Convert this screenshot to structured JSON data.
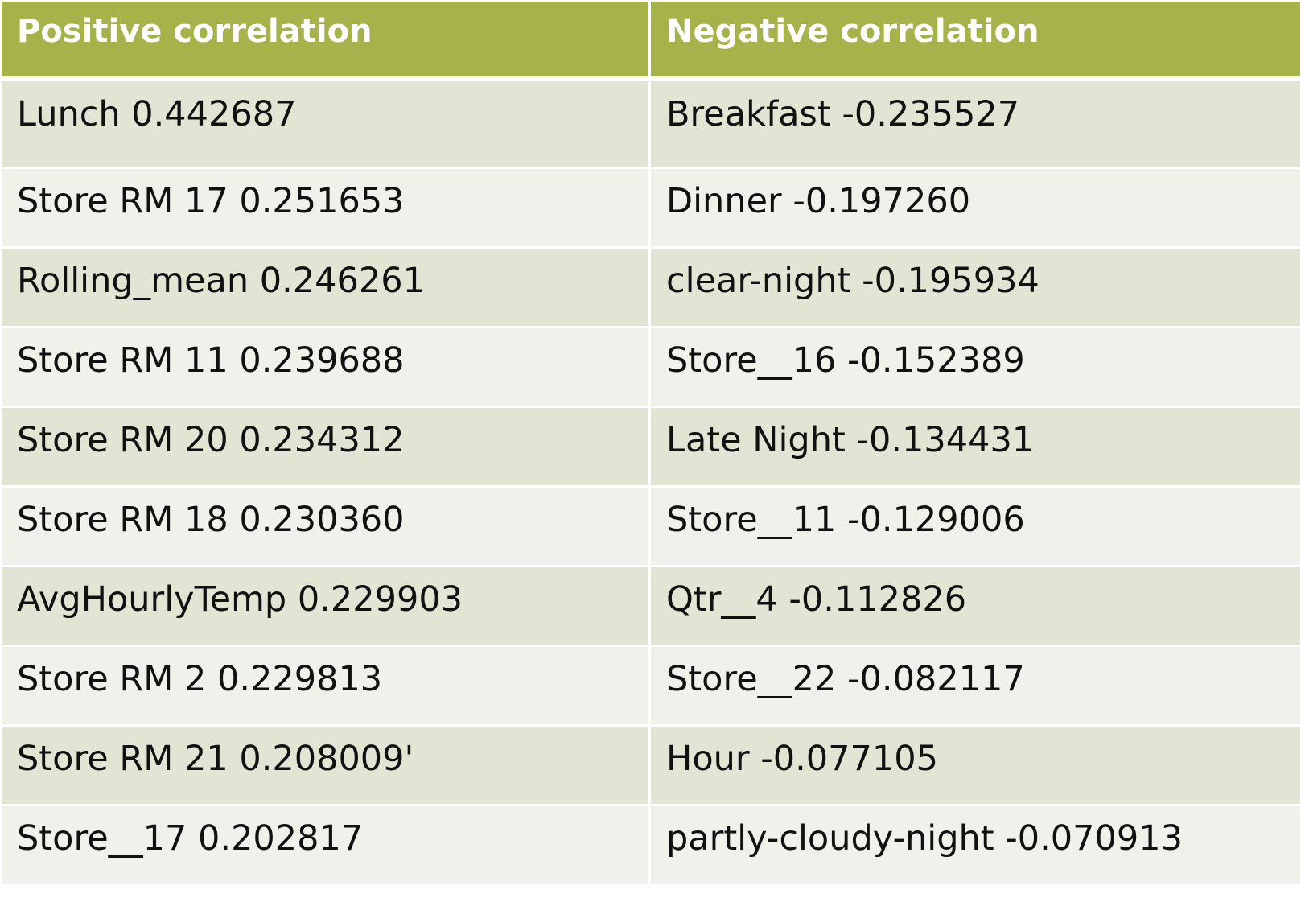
{
  "table": {
    "headers": [
      "Positive correlation",
      "Negative correlation"
    ],
    "rows": [
      [
        "Lunch 0.442687",
        "Breakfast -0.235527"
      ],
      [
        "Store RM 17 0.251653",
        "Dinner -0.197260"
      ],
      [
        "Rolling_mean 0.246261",
        "clear-night -0.195934"
      ],
      [
        "Store RM 11 0.239688",
        "Store__16 -0.152389"
      ],
      [
        "Store RM 20 0.234312",
        "Late Night -0.134431"
      ],
      [
        "Store RM 18 0.230360",
        "Store__11 -0.129006"
      ],
      [
        "AvgHourlyTemp 0.229903",
        "Qtr__4 -0.112826"
      ],
      [
        "Store RM 2 0.229813",
        "Store__22 -0.082117"
      ],
      [
        "Store RM 21 0.208009'",
        "Hour -0.077105"
      ],
      [
        "Store__17 0.202817",
        "partly-cloudy-night -0.070913"
      ]
    ]
  },
  "colors": {
    "header_bg": "#a6b24a",
    "row_odd_bg": "#e2e5d4",
    "row_even_bg": "#f0f1ea",
    "header_text": "#ffffff"
  }
}
